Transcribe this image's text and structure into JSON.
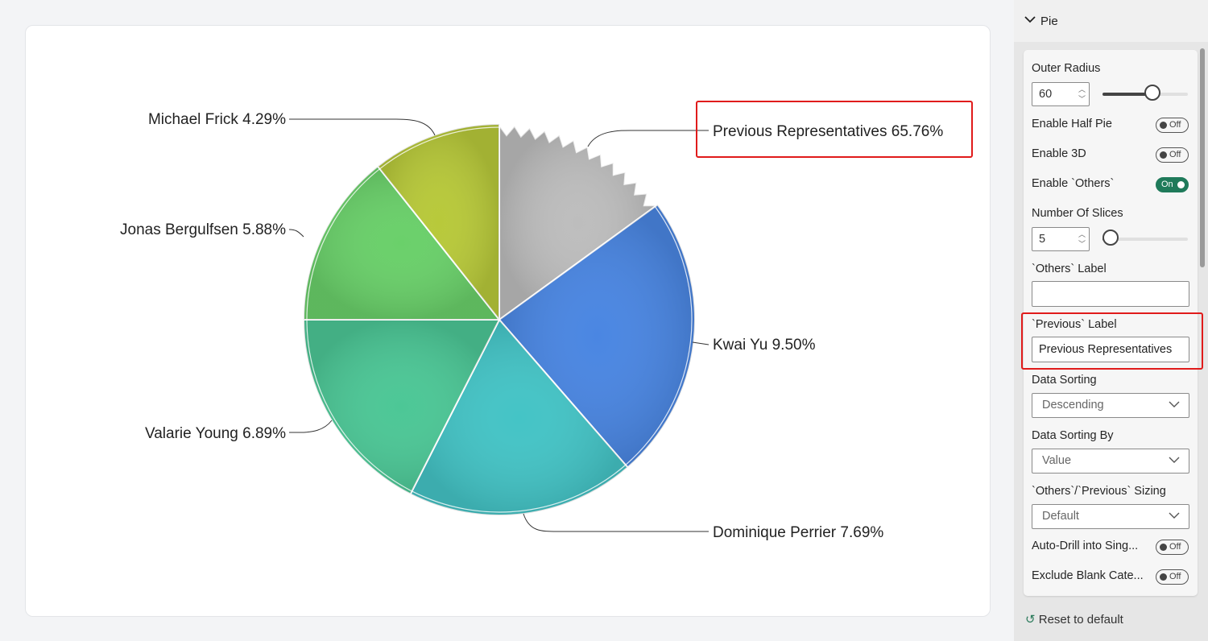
{
  "chart_data": {
    "type": "pie",
    "slices": [
      {
        "label": "Previous Representatives",
        "value_text": "65.76%",
        "value": 65.76,
        "color": "#bdbdbd"
      },
      {
        "label": "Kwai Yu",
        "value_text": "9.50%",
        "value": 9.5,
        "color": "#4a86e2"
      },
      {
        "label": "Dominique Perrier",
        "value_text": "7.69%",
        "value": 7.69,
        "color": "#44c4c6"
      },
      {
        "label": "Valarie Young",
        "value_text": "6.89%",
        "value": 6.89,
        "color": "#4cc796"
      },
      {
        "label": "Jonas Bergulfsen",
        "value_text": "5.88%",
        "value": 5.88,
        "color": "#6ad06a"
      },
      {
        "label": "Michael Frick",
        "value_text": "4.29%",
        "value": 4.29,
        "color": "#b8c93a"
      }
    ]
  },
  "pane": {
    "section_title": "Pie",
    "outer_radius": {
      "label": "Outer Radius",
      "value": "60",
      "slider_fraction": 0.6
    },
    "enable_half_pie": {
      "label": "Enable Half Pie",
      "state": "Off"
    },
    "enable_3d": {
      "label": "Enable 3D",
      "state": "Off"
    },
    "enable_others": {
      "label": "Enable `Others`",
      "state": "On"
    },
    "number_of_slices": {
      "label": "Number Of Slices",
      "value": "5",
      "slider_fraction": 0.0
    },
    "others_label": {
      "label": "`Others` Label",
      "value": ""
    },
    "previous_label": {
      "label": "`Previous` Label",
      "value": "Previous Representatives"
    },
    "data_sorting": {
      "label": "Data Sorting",
      "value": "Descending"
    },
    "data_sorting_by": {
      "label": "Data Sorting By",
      "value": "Value"
    },
    "sizing": {
      "label": "`Others`/`Previous` Sizing",
      "value": "Default"
    },
    "auto_drill": {
      "label": "Auto-Drill into Sing...",
      "state": "Off"
    },
    "exclude_blank": {
      "label": "Exclude Blank Cate...",
      "state": "Off"
    },
    "reset": "Reset to default"
  },
  "highlight_color": "#e01b1b"
}
